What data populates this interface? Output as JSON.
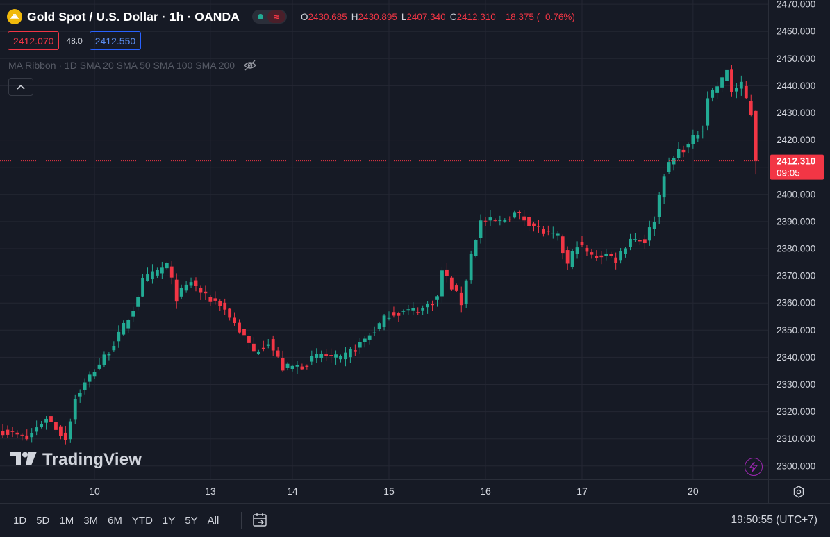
{
  "header": {
    "title": "Gold Spot / U.S. Dollar · 1h · OANDA",
    "wave_glyph": "≈",
    "ohlc": [
      {
        "key": "O",
        "value": "2430.685"
      },
      {
        "key": "H",
        "value": "2430.895"
      },
      {
        "key": "L",
        "value": "2407.340"
      },
      {
        "key": "C",
        "value": "2412.310"
      }
    ],
    "change": "−18.375 (−0.76%)"
  },
  "quotes": {
    "sell": "2412.070",
    "spread": "48.0",
    "buy": "2412.550"
  },
  "indicator": {
    "label": "MA Ribbon · 1D SMA 20 SMA 50 SMA 100 SMA 200"
  },
  "watermark": {
    "text": "TradingView"
  },
  "bottom": {
    "ranges": [
      "1D",
      "5D",
      "1M",
      "3M",
      "6M",
      "YTD",
      "1Y",
      "5Y",
      "All"
    ],
    "clock": "19:50:55 (UTC+7)"
  },
  "colors": {
    "up": "#22ab94",
    "down": "#f23645",
    "background": "#161a25",
    "grid": "#242733",
    "text": "#d1d4dc"
  },
  "icons": [
    "gold-coin-icon",
    "eye-slash-icon",
    "chevron-up-icon",
    "bolt-icon",
    "settings-icon",
    "calendar-range-icon"
  ],
  "chart_data": {
    "type": "candlestick",
    "title": "Gold Spot / U.S. Dollar · 1h · OANDA",
    "ylim": [
      2300,
      2470
    ],
    "y_ticks": [
      "2300.000",
      "2310.000",
      "2320.000",
      "2330.000",
      "2340.000",
      "2350.000",
      "2360.000",
      "2370.000",
      "2380.000",
      "2390.000",
      "2400.000",
      "2410.000",
      "2420.000",
      "2430.000",
      "2440.000",
      "2450.000",
      "2460.000",
      "2470.000"
    ],
    "x_ticks": [
      {
        "label": "10",
        "bar": 19
      },
      {
        "label": "13",
        "bar": 43
      },
      {
        "label": "14",
        "bar": 60
      },
      {
        "label": "15",
        "bar": 80
      },
      {
        "label": "16",
        "bar": 100
      },
      {
        "label": "17",
        "bar": 120
      },
      {
        "label": "20",
        "bar": 143
      }
    ],
    "last_price": {
      "value": 2412.31,
      "label": "2412.310",
      "countdown": "09:05"
    },
    "grid": true,
    "waypoints": [
      [
        0,
        2313
      ],
      [
        5,
        2310
      ],
      [
        9,
        2318
      ],
      [
        13,
        2310
      ],
      [
        15,
        2325
      ],
      [
        18,
        2333
      ],
      [
        21,
        2340
      ],
      [
        24,
        2348
      ],
      [
        27,
        2358
      ],
      [
        29,
        2368
      ],
      [
        34,
        2374
      ],
      [
        36,
        2362
      ],
      [
        39,
        2368
      ],
      [
        42,
        2362
      ],
      [
        45,
        2360
      ],
      [
        49,
        2350
      ],
      [
        52,
        2342
      ],
      [
        55,
        2346
      ],
      [
        58,
        2336
      ],
      [
        62,
        2337
      ],
      [
        66,
        2341
      ],
      [
        70,
        2339
      ],
      [
        74,
        2345
      ],
      [
        77,
        2350
      ],
      [
        80,
        2356
      ],
      [
        84,
        2357
      ],
      [
        87,
        2358
      ],
      [
        90,
        2362
      ],
      [
        91,
        2372
      ],
      [
        95,
        2360
      ],
      [
        97,
        2378
      ],
      [
        99,
        2390
      ],
      [
        103,
        2390
      ],
      [
        106,
        2393
      ],
      [
        109,
        2390
      ],
      [
        112,
        2386
      ],
      [
        115,
        2384
      ],
      [
        117,
        2374
      ],
      [
        119,
        2382
      ],
      [
        122,
        2377
      ],
      [
        125,
        2378
      ],
      [
        127,
        2376
      ],
      [
        130,
        2384
      ],
      [
        133,
        2383
      ],
      [
        135,
        2391
      ],
      [
        137,
        2408
      ],
      [
        140,
        2416
      ],
      [
        142,
        2418
      ],
      [
        145,
        2425
      ],
      [
        146,
        2436
      ],
      [
        149,
        2442
      ],
      [
        150,
        2446
      ],
      [
        151,
        2438
      ],
      [
        153,
        2440
      ],
      [
        155,
        2430
      ],
      [
        156,
        2412.31
      ]
    ]
  }
}
